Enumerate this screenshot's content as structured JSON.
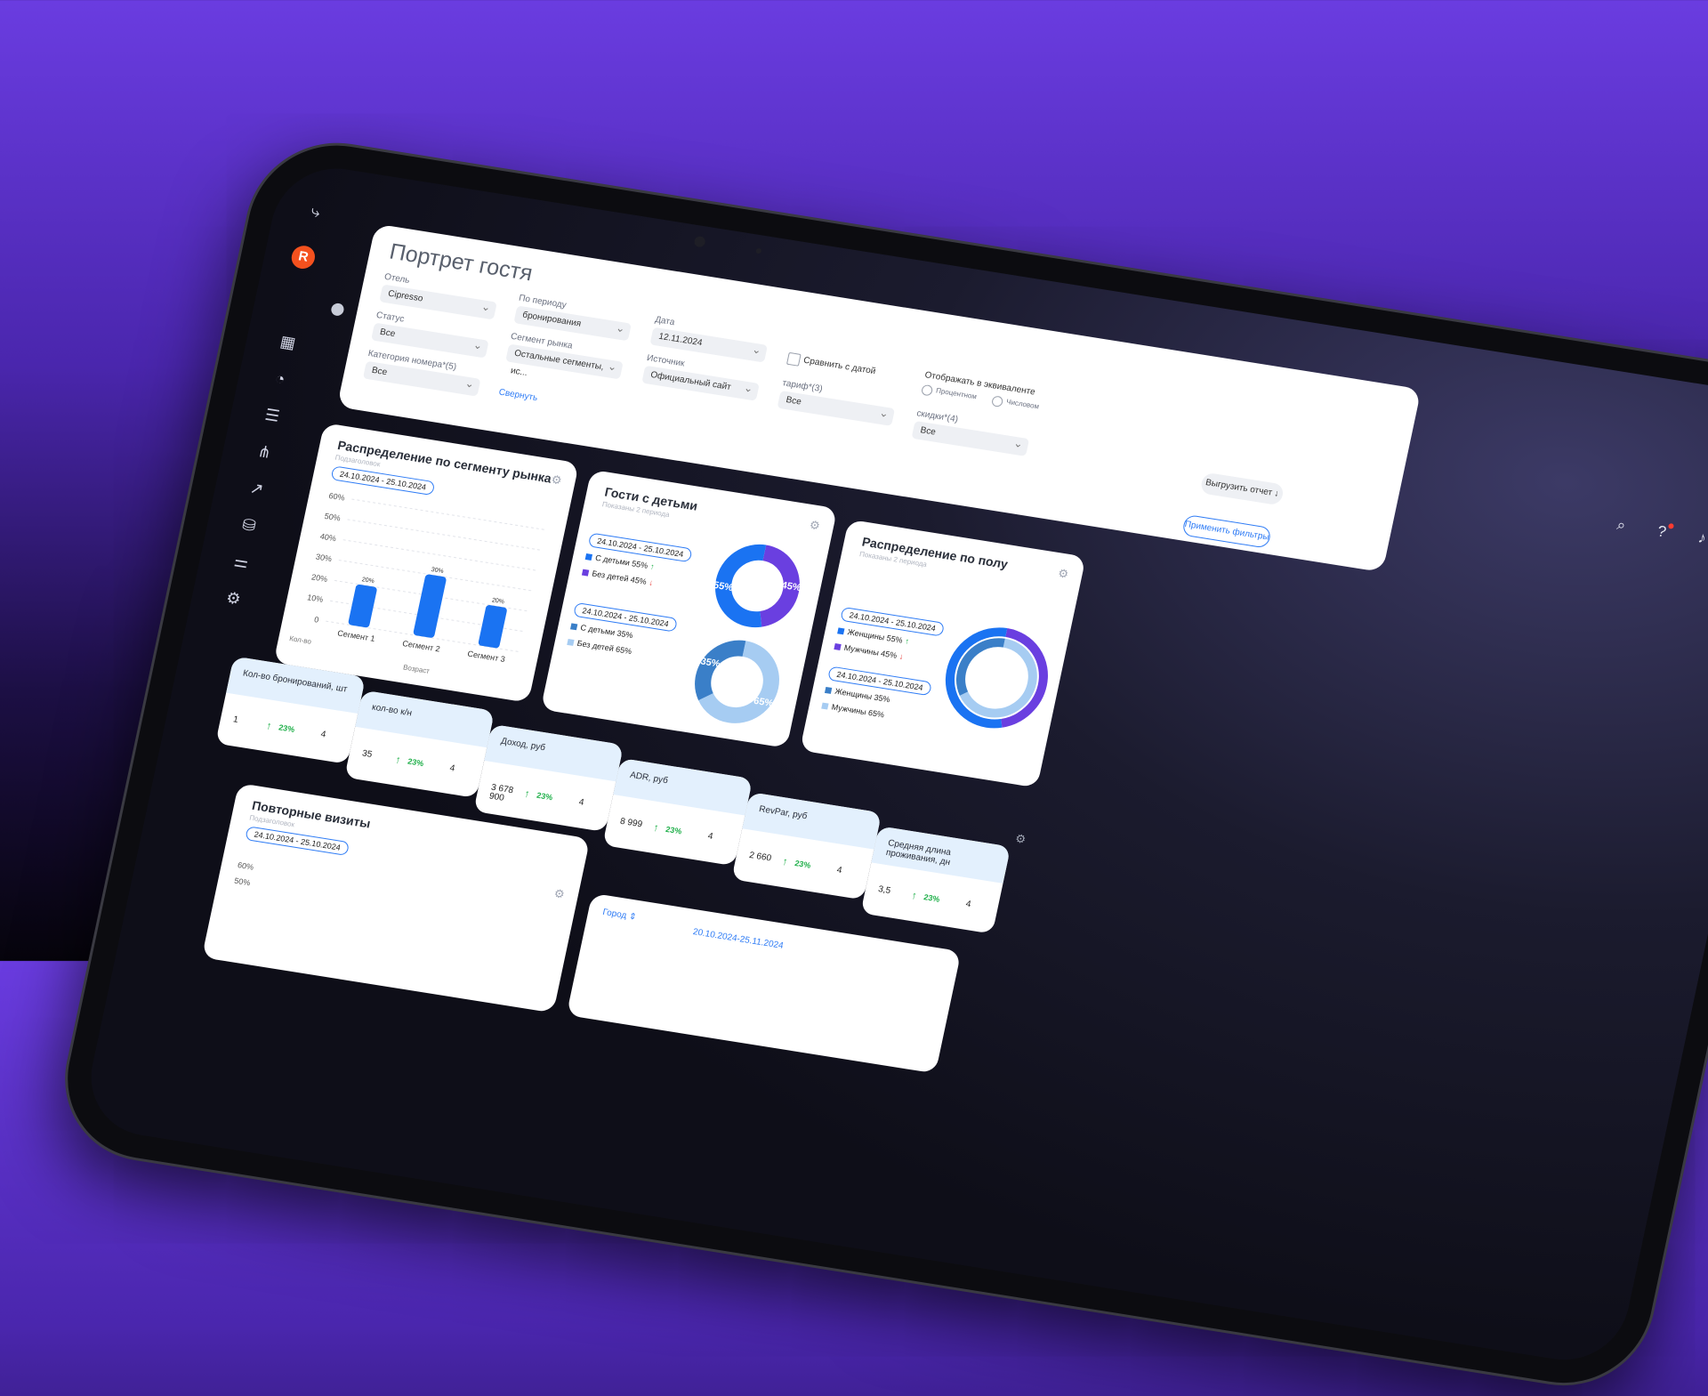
{
  "page": {
    "title": "Портрет гостя"
  },
  "filters": {
    "hotel": {
      "label": "Отель",
      "value": "Cipresso"
    },
    "status": {
      "label": "Статус",
      "value": "Все"
    },
    "room_category": {
      "label": "Категория номера*(5)",
      "value": "Все"
    },
    "period": {
      "label": "По периоду",
      "value": "бронирования"
    },
    "segment": {
      "label": "Сегмент рынка",
      "value": "Остальные сегменты, ис..."
    },
    "date": {
      "label": "Дата",
      "value": "12.11.2024"
    },
    "source": {
      "label": "Источник",
      "value": "Официальный сайт"
    },
    "compare": {
      "label": "Сравнить с датой"
    },
    "tariff": {
      "label": "тариф*(3)",
      "value": "Все"
    },
    "display": {
      "label": "Отображать в эквиваленте",
      "option1": "Процентном",
      "option2": "Числовом"
    },
    "discounts": {
      "label": "скидки*(4)",
      "value": "Все"
    },
    "collapse": "Свернуть",
    "export": "Выгрузить отчет",
    "apply": "Применить фильтры"
  },
  "segment_card": {
    "title": "Распределение по сегменту рынка",
    "subtitle": "Подзаголовок",
    "period": "24.10.2024 - 25.10.2024"
  },
  "chart_data": {
    "type": "bar",
    "title": "Распределение по сегменту рынка",
    "categories": [
      "Сегмент 1",
      "Сегмент 2",
      "Сегмент 3"
    ],
    "values": [
      20,
      30,
      20
    ],
    "data_labels": [
      "20%",
      "30%",
      "20%"
    ],
    "y_ticks": [
      "60%",
      "50%",
      "40%",
      "30%",
      "20%",
      "10%",
      "0"
    ],
    "ylim": [
      0,
      60
    ],
    "ylabel": "Кол-во",
    "xlabel": "Возраст",
    "color": "#1a73f2"
  },
  "children_card": {
    "title": "Гости с детьми",
    "subtitle": "Показаны 2 периода",
    "period1": {
      "label": "24.10.2024 - 25.10.2024",
      "with": "С детьми 55%",
      "without": "Без детей 45%",
      "values": [
        55,
        45
      ],
      "with_label": "55%",
      "without_label": "45%"
    },
    "period2": {
      "label": "24.10.2024 - 25.10.2024",
      "with": "С детьми 35%",
      "without": "Без детей 65%",
      "values": [
        35,
        65
      ],
      "with_label": "35%",
      "without_label": "65%"
    }
  },
  "gender_card": {
    "title": "Распределение по полу",
    "subtitle": "Показаны 2 периода",
    "period1": {
      "label": "24.10.2024 - 25.10.2024",
      "women": "Женщины 55%",
      "men": "Мужчины 45%",
      "values": [
        55,
        45
      ]
    },
    "period2": {
      "label": "24.10.2024 - 25.10.2024",
      "women": "Женщины 35%",
      "men": "Мужчины 65%",
      "values": [
        35,
        65
      ]
    }
  },
  "kpis": [
    {
      "title": "Кол-во бронирований, шт",
      "value": "1",
      "pct": "23%",
      "count": "4"
    },
    {
      "title": "кол-во к/н",
      "value": "35",
      "pct": "23%",
      "count": "4"
    },
    {
      "title": "Доход, руб",
      "value": "3 678 900",
      "pct": "23%",
      "count": "4"
    },
    {
      "title": "ADR, руб",
      "value": "8 999",
      "pct": "23%",
      "count": "4"
    },
    {
      "title": "RevPar, руб",
      "value": "2 660",
      "pct": "23%",
      "count": "4"
    },
    {
      "title": "Средняя длина проживания, дн",
      "value": "3,5",
      "pct": "23%",
      "count": "4"
    }
  ],
  "repeat_card": {
    "title": "Повторные визиты",
    "subtitle": "Подзаголовок",
    "period": "24.10.2024 - 25.10.2024",
    "y_ticks": [
      "60%",
      "50%"
    ]
  },
  "table_strip": {
    "column": "Город",
    "period": "20.10.2024-25.11.2024"
  },
  "colors": {
    "primary": "#1a73f2",
    "violet": "#6a3fe0",
    "light_blue": "#a6ccf2",
    "mid_blue": "#3a7fc8",
    "green": "#21b04b",
    "red": "#e53935"
  }
}
